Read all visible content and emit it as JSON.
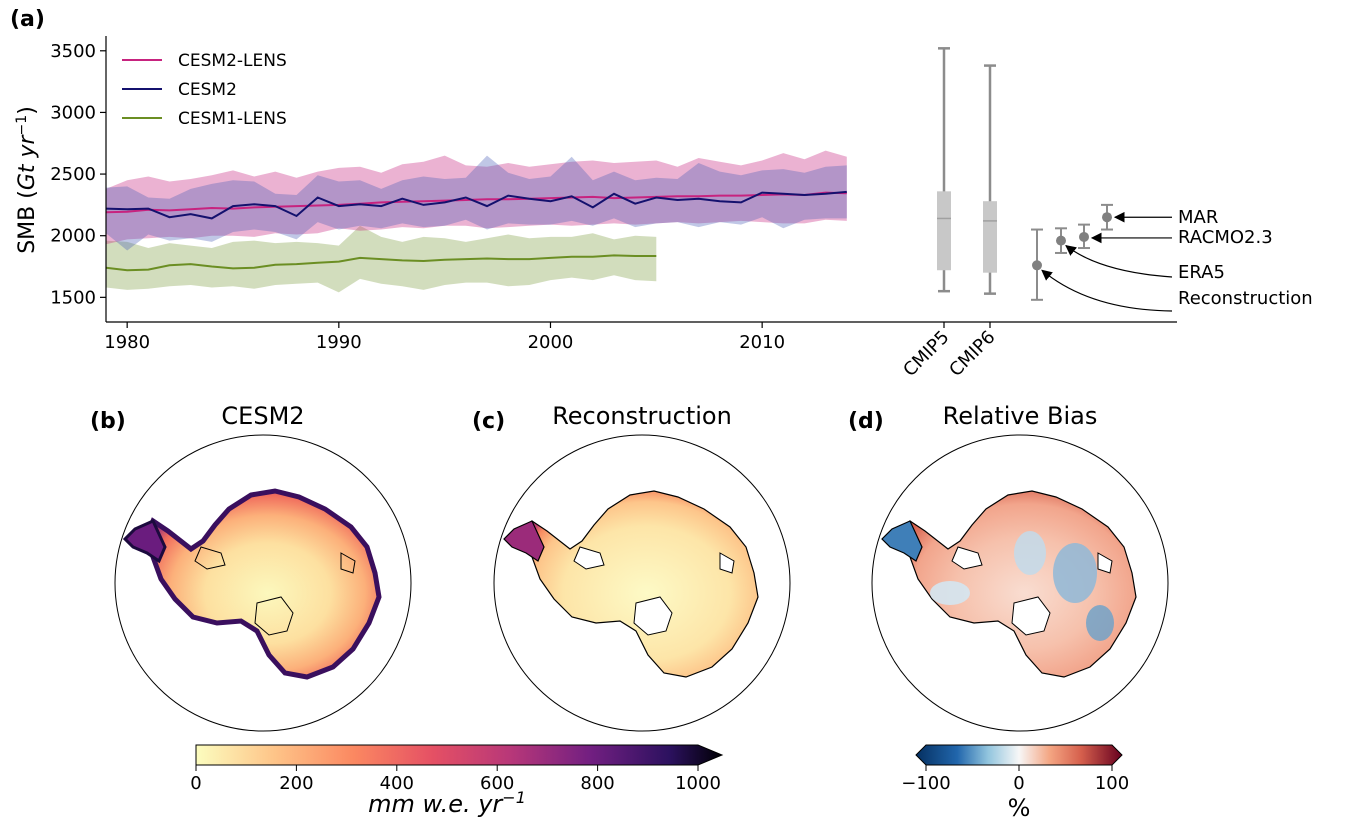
{
  "panels": {
    "a": "(a)",
    "b": "(b)",
    "c": "(c)",
    "d": "(d)"
  },
  "map_titles": {
    "b": "CESM2",
    "c": "Reconstruction",
    "d": "Relative Bias"
  },
  "colors": {
    "cesm2_lens": "#c7237f",
    "cesm2": "#14116e",
    "cesm1_lens": "#6b8e23",
    "cmip_box": "#c8c8c8",
    "cmip_whisker": "#8c8c8c"
  },
  "chart_data": [
    {
      "type": "line",
      "ylabel_main": "SMB (",
      "ylabel_italic": "Gt yr",
      "ylabel_sup": "−1",
      "ylabel_end": ")",
      "xlim": [
        1979,
        2025.5
      ],
      "ylim": [
        1300,
        3620
      ],
      "xticks": [
        1980,
        1990,
        2000,
        2010
      ],
      "yticks": [
        1500,
        2000,
        2500,
        3000,
        3500
      ],
      "legend": {
        "placement": "top-left",
        "entries": [
          "CESM2-LENS",
          "CESM2",
          "CESM1-LENS"
        ]
      },
      "series": [
        {
          "name": "CESM2-LENS",
          "x": [
            1979,
            1980,
            1981,
            1982,
            1983,
            1984,
            1985,
            1986,
            1987,
            1988,
            1989,
            1990,
            1991,
            1992,
            1993,
            1994,
            1995,
            1996,
            1997,
            1998,
            1999,
            2000,
            2001,
            2002,
            2003,
            2004,
            2005,
            2006,
            2007,
            2008,
            2009,
            2010,
            2011,
            2012,
            2013,
            2014
          ],
          "y": [
            2190,
            2195,
            2210,
            2205,
            2215,
            2225,
            2220,
            2230,
            2235,
            2240,
            2245,
            2250,
            2260,
            2270,
            2275,
            2280,
            2285,
            2290,
            2295,
            2295,
            2300,
            2305,
            2310,
            2315,
            2305,
            2310,
            2315,
            2320,
            2320,
            2325,
            2325,
            2330,
            2335,
            2330,
            2350,
            2345
          ],
          "upper": [
            2380,
            2450,
            2480,
            2440,
            2460,
            2490,
            2530,
            2480,
            2520,
            2470,
            2520,
            2550,
            2560,
            2510,
            2580,
            2600,
            2650,
            2570,
            2560,
            2590,
            2560,
            2580,
            2600,
            2610,
            2590,
            2600,
            2610,
            2560,
            2630,
            2600,
            2570,
            2610,
            2670,
            2620,
            2690,
            2640
          ],
          "lower": [
            1930,
            1970,
            1980,
            1990,
            1980,
            2000,
            2000,
            1990,
            2020,
            2010,
            2020,
            2060,
            2040,
            2050,
            2070,
            2060,
            2080,
            2080,
            2060,
            2070,
            2080,
            2090,
            2080,
            2090,
            2100,
            2090,
            2100,
            2110,
            2100,
            2110,
            2120,
            2110,
            2100,
            2100,
            2130,
            2120
          ]
        },
        {
          "name": "CESM2",
          "x": [
            1979,
            1980,
            1981,
            1982,
            1983,
            1984,
            1985,
            1986,
            1987,
            1988,
            1989,
            1990,
            1991,
            1992,
            1993,
            1994,
            1995,
            1996,
            1997,
            1998,
            1999,
            2000,
            2001,
            2002,
            2003,
            2004,
            2005,
            2006,
            2007,
            2008,
            2009,
            2010,
            2011,
            2012,
            2013,
            2014
          ],
          "y": [
            2220,
            2215,
            2220,
            2150,
            2175,
            2140,
            2240,
            2255,
            2240,
            2160,
            2310,
            2240,
            2255,
            2240,
            2300,
            2250,
            2270,
            2310,
            2240,
            2325,
            2300,
            2280,
            2320,
            2230,
            2340,
            2260,
            2310,
            2290,
            2300,
            2280,
            2270,
            2350,
            2340,
            2330,
            2340,
            2355
          ],
          "upper": [
            2390,
            2400,
            2310,
            2300,
            2380,
            2420,
            2450,
            2440,
            2340,
            2330,
            2490,
            2440,
            2450,
            2380,
            2450,
            2480,
            2460,
            2470,
            2650,
            2510,
            2460,
            2480,
            2640,
            2450,
            2520,
            2450,
            2470,
            2460,
            2590,
            2520,
            2490,
            2530,
            2540,
            2510,
            2560,
            2570
          ],
          "lower": [
            2020,
            1880,
            2010,
            1960,
            1980,
            1950,
            2030,
            2050,
            2030,
            1970,
            2110,
            2050,
            2080,
            2060,
            2100,
            2070,
            2080,
            2130,
            2050,
            2100,
            2090,
            2090,
            2120,
            2080,
            2140,
            2070,
            2100,
            2110,
            2070,
            2110,
            2090,
            2150,
            2060,
            2130,
            2140,
            2140
          ]
        },
        {
          "name": "CESM1-LENS",
          "x": [
            1979,
            1980,
            1981,
            1982,
            1983,
            1984,
            1985,
            1986,
            1987,
            1988,
            1989,
            1990,
            1991,
            1992,
            1993,
            1994,
            1995,
            1996,
            1997,
            1998,
            1999,
            2000,
            2001,
            2002,
            2003,
            2004,
            2005
          ],
          "y": [
            1740,
            1720,
            1725,
            1760,
            1770,
            1750,
            1735,
            1740,
            1765,
            1770,
            1780,
            1790,
            1820,
            1810,
            1800,
            1795,
            1805,
            1810,
            1815,
            1810,
            1810,
            1820,
            1830,
            1830,
            1840,
            1835,
            1835
          ],
          "upper": [
            1960,
            1950,
            1900,
            1940,
            1920,
            1900,
            1950,
            1960,
            1940,
            1950,
            1940,
            1920,
            2080,
            1990,
            1950,
            1990,
            1980,
            1950,
            1980,
            2010,
            1980,
            1990,
            1990,
            2020,
            1970,
            2000,
            1990
          ],
          "lower": [
            1580,
            1560,
            1570,
            1590,
            1600,
            1580,
            1590,
            1570,
            1600,
            1610,
            1620,
            1540,
            1650,
            1610,
            1590,
            1560,
            1600,
            1620,
            1620,
            1590,
            1600,
            1640,
            1660,
            1640,
            1680,
            1640,
            1630
          ]
        }
      ],
      "boxes": [
        {
          "name": "CMIP5",
          "x": 2021.1,
          "median": 2140,
          "q1": 1720,
          "q3": 2360,
          "whisker_low": 1550,
          "whisker_high": 3520
        },
        {
          "name": "CMIP6",
          "x": 2023.2,
          "median": 2120,
          "q1": 1700,
          "q3": 2280,
          "whisker_low": 1530,
          "whisker_high": 3380
        }
      ],
      "points": [
        {
          "name": "Reconstruction",
          "x": 2025.5,
          "y": 1760,
          "err_low": 1480,
          "err_high": 2050
        },
        {
          "name": "ERA5",
          "x": 2026.5,
          "y": 1960,
          "err_low": 1860,
          "err_high": 2060
        },
        {
          "name": "RACMO2.3",
          "x": 2027.5,
          "y": 1990,
          "err_low": 1900,
          "err_high": 2090
        },
        {
          "name": "MAR",
          "x": 2028.5,
          "y": 2150,
          "err_low": 2050,
          "err_high": 2250
        }
      ]
    },
    {
      "type": "heatmap",
      "title": "CESM2",
      "colormap": "magma_r",
      "colorbar": {
        "ticks": [
          0,
          200,
          400,
          600,
          800,
          1000
        ],
        "range": [
          0,
          1000
        ],
        "label_main": "mm w.e. yr",
        "label_sup": "−1"
      }
    },
    {
      "type": "heatmap",
      "title": "Reconstruction",
      "colormap": "magma_r"
    },
    {
      "type": "heatmap",
      "title": "Relative Bias",
      "colormap": "RdBu_r",
      "colorbar": {
        "ticks": [
          "−100",
          "0",
          "100"
        ],
        "range": [
          -100,
          100
        ],
        "label": "%"
      }
    }
  ]
}
